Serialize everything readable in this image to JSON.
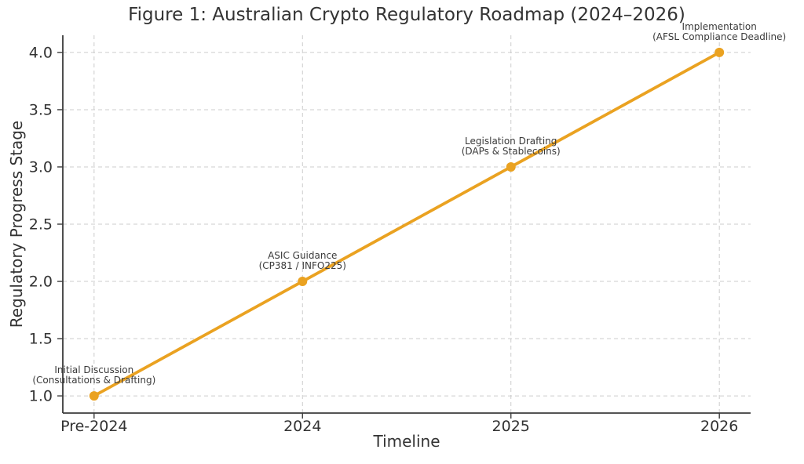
{
  "colors": {
    "line": "#EAA221",
    "grid": "#cccccc",
    "axis": "#3b3b3b",
    "text": "#333333",
    "annotation": "#3a3a3a",
    "background": "#ffffff"
  },
  "chart_data": {
    "type": "line",
    "title": "Figure 1: Australian Crypto Regulatory Roadmap (2024–2026)",
    "xlabel": "Timeline",
    "ylabel": "Regulatory Progress Stage",
    "categories": [
      "Pre-2024",
      "2024",
      "2025",
      "2026"
    ],
    "series": [
      {
        "name": "Regulatory Progress Stage",
        "values": [
          1,
          2,
          3,
          4
        ],
        "color": "#EAA221",
        "marker": "circle"
      }
    ],
    "y_ticks": [
      1.0,
      1.5,
      2.0,
      2.5,
      3.0,
      3.5,
      4.0
    ],
    "y_tick_labels": [
      "1.0",
      "1.5",
      "2.0",
      "2.5",
      "3.0",
      "3.5",
      "4.0"
    ],
    "xlim": [
      -0.15,
      3.15
    ],
    "ylim": [
      0.85,
      4.15
    ],
    "grid": true,
    "grid_style": "dashed",
    "legend": "none",
    "annotations": [
      {
        "x": "Pre-2024",
        "y": 1,
        "lines": [
          "Initial Discussion",
          "(Consultations & Drafting)"
        ]
      },
      {
        "x": "2024",
        "y": 2,
        "lines": [
          "ASIC Guidance",
          "(CP381 / INFO225)"
        ]
      },
      {
        "x": "2025",
        "y": 3,
        "lines": [
          "Legislation Drafting",
          "(DAPs & Stablecoins)"
        ]
      },
      {
        "x": "2026",
        "y": 4,
        "lines": [
          "Implementation",
          "(AFSL Compliance Deadline)"
        ]
      }
    ]
  }
}
